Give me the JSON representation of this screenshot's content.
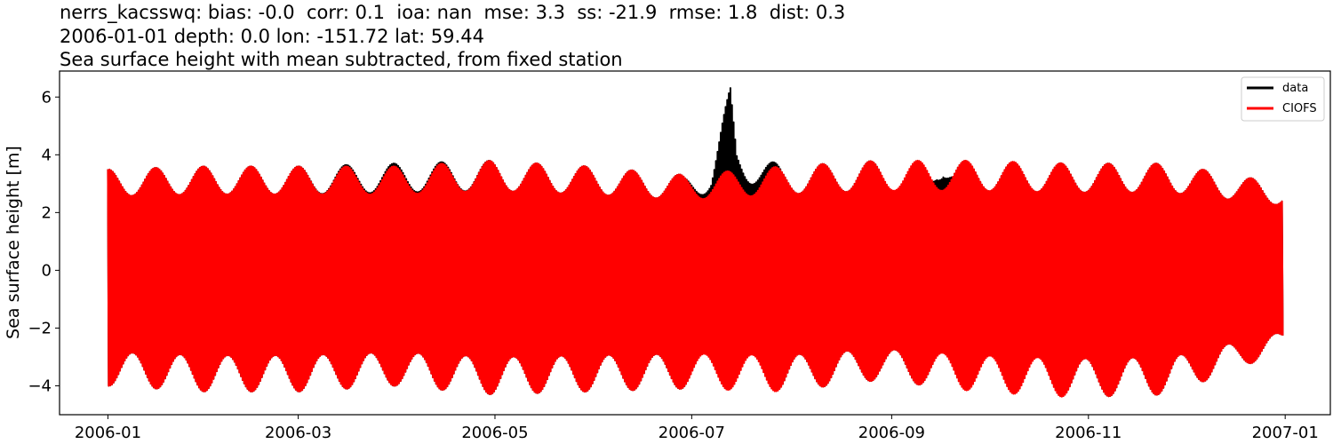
{
  "chart_data": {
    "type": "line",
    "title_lines": [
      "nerrs_kacsswq: bias: -0.0  corr: 0.1  ioa: nan  mse: 3.3  ss: -21.9  rmse: 1.8  dist: 0.3",
      "2006-01-01 depth: 0.0 lon: -151.72 lat: 59.44",
      "Sea surface height with mean subtracted, from fixed station"
    ],
    "xlabel": "",
    "ylabel": "Sea surface height [m]",
    "x_range": [
      "2005-12-17",
      "2007-01-15"
    ],
    "ylim": [
      -5.0,
      6.9
    ],
    "x_ticks": [
      "2006-01",
      "2006-03",
      "2006-05",
      "2006-07",
      "2006-09",
      "2006-11",
      "2007-01"
    ],
    "y_ticks": [
      -4,
      -2,
      0,
      2,
      4,
      6
    ],
    "grid": false,
    "legend_position": "top-right",
    "series": [
      {
        "name": "data",
        "color": "#000000",
        "x": [
          "2006-01-01",
          "2006-01-31",
          "2006-03-01",
          "2006-03-31",
          "2006-04-30",
          "2006-05-30",
          "2006-06-29",
          "2006-07-07",
          "2006-07-12",
          "2006-07-13",
          "2006-07-15",
          "2006-07-29",
          "2006-08-28",
          "2006-09-12",
          "2006-09-15",
          "2006-09-17",
          "2006-09-20",
          "2006-10-27",
          "2006-11-26",
          "2006-12-31"
        ],
        "high": [
          3.5,
          3.6,
          3.6,
          3.7,
          3.8,
          3.6,
          3.3,
          3.7,
          5.9,
          6.4,
          4.4,
          3.6,
          3.8,
          3.2,
          4.2,
          4.5,
          3.8,
          3.7,
          3.7,
          3.0
        ],
        "low": [
          -4.0,
          -4.2,
          -4.2,
          -4.0,
          -4.3,
          -4.2,
          -4.1,
          -3.9,
          -4.1,
          -4.1,
          -3.8,
          -4.2,
          -3.8,
          -4.0,
          -3.9,
          -4.0,
          -3.6,
          -4.4,
          -4.3,
          -2.8
        ]
      },
      {
        "name": "CIOFS",
        "color": "#ff0000",
        "x": [
          "2006-01-01",
          "2006-01-31",
          "2006-03-01",
          "2006-03-31",
          "2006-04-30",
          "2006-05-30",
          "2006-06-29",
          "2006-07-29",
          "2006-08-28",
          "2006-09-27",
          "2006-10-27",
          "2006-11-26",
          "2006-12-31"
        ],
        "high": [
          3.5,
          3.6,
          3.6,
          3.6,
          3.8,
          3.6,
          3.3,
          3.6,
          3.8,
          3.8,
          3.7,
          3.7,
          3.0
        ],
        "low": [
          -4.0,
          -4.2,
          -4.2,
          -4.0,
          -4.3,
          -4.2,
          -4.1,
          -4.2,
          -3.8,
          -4.2,
          -4.4,
          -4.3,
          -2.8
        ]
      }
    ]
  }
}
